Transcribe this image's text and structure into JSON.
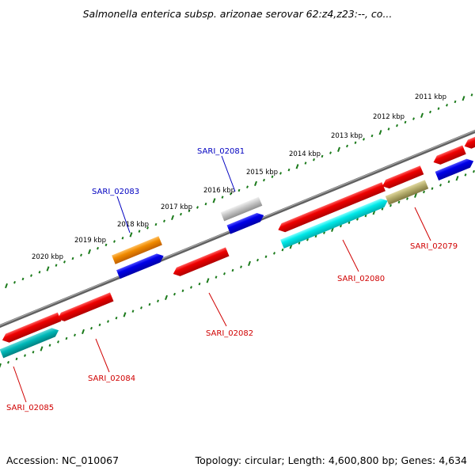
{
  "title": "Salmonella enterica subsp. arizonae serovar 62:z4,z23:--, co...",
  "footer": {
    "accession": "Accession: NC_010067",
    "summary": "Topology: circular; Length: 4,600,800 bp; Genes: 4,634"
  },
  "ruler": {
    "ticks": [
      "2011 kbp",
      "2012 kbp",
      "2013 kbp",
      "2014 kbp",
      "2015 kbp",
      "2016 kbp",
      "2017 kbp",
      "2018 kbp",
      "2019 kbp",
      "2020 kbp"
    ]
  },
  "genes": [
    {
      "id": "SARI_02081",
      "strand": "forward",
      "color": "#0000c0"
    },
    {
      "id": "SARI_02083",
      "strand": "forward",
      "color": "#0000c0"
    },
    {
      "id": "SARI_02079",
      "strand": "reverse",
      "color": "#d00000"
    },
    {
      "id": "SARI_02080",
      "strand": "reverse",
      "color": "#d00000"
    },
    {
      "id": "SARI_02082",
      "strand": "reverse",
      "color": "#d00000"
    },
    {
      "id": "SARI_02084",
      "strand": "reverse",
      "color": "#d00000"
    },
    {
      "id": "SARI_02085",
      "strand": "reverse",
      "color": "#d00000"
    }
  ],
  "colors": {
    "backbone": "#707070",
    "tick": "#1a7a1a",
    "red_feature": "#ee0000",
    "blue_feature": "#0000e8",
    "cyan_feature": "#00e0e0",
    "teal_feature": "#00b8b8",
    "orange_feature": "#f08a00",
    "gray_feature": "#c0c0c0",
    "olive_feature": "#b8b070"
  }
}
